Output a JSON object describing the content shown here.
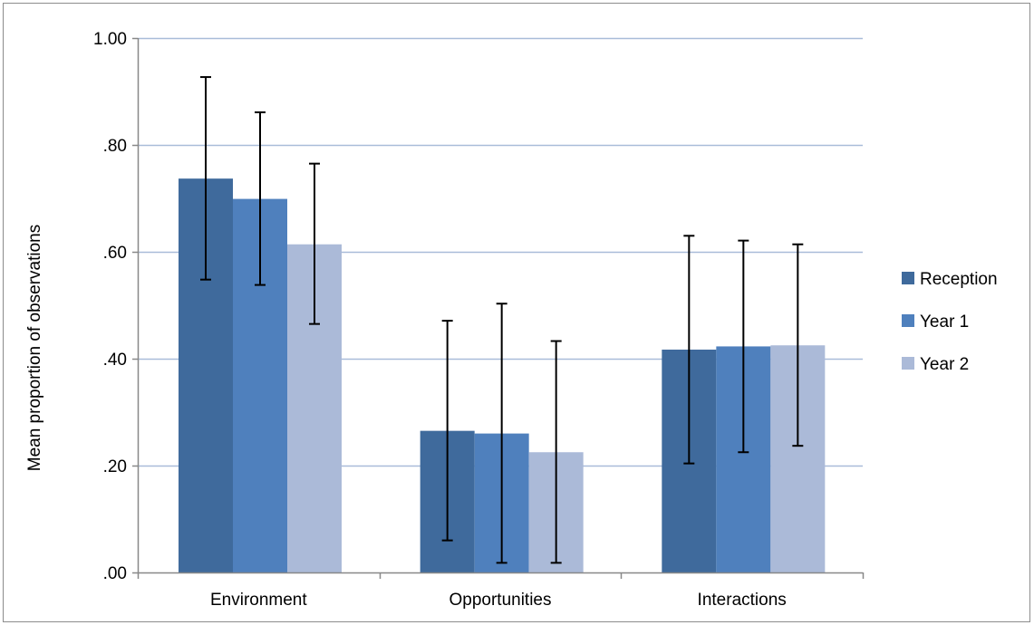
{
  "chart_data": {
    "type": "bar",
    "title": "",
    "xlabel": "",
    "ylabel": "Mean proportion of observations",
    "ylim": [
      0,
      1
    ],
    "y_ticks": [
      0,
      0.2,
      0.4,
      0.6,
      0.8,
      1.0
    ],
    "y_tick_labels": [
      ".00",
      ".20",
      ".40",
      ".60",
      ".80",
      "1.00"
    ],
    "categories": [
      "Environment",
      "Opportunities",
      "Interactions"
    ],
    "grid": true,
    "legend_position": "right",
    "series": [
      {
        "name": "Reception",
        "color": "#3f6a9c",
        "values": [
          0.737,
          0.265,
          0.417
        ],
        "error_low": [
          0.548,
          0.06,
          0.204
        ],
        "error_high": [
          0.927,
          0.471,
          0.63
        ]
      },
      {
        "name": "Year 1",
        "color": "#4f80bd",
        "values": [
          0.699,
          0.26,
          0.423
        ],
        "error_low": [
          0.538,
          0.018,
          0.225
        ],
        "error_high": [
          0.861,
          0.503,
          0.621
        ]
      },
      {
        "name": "Year 2",
        "color": "#abbad8",
        "values": [
          0.614,
          0.225,
          0.425
        ],
        "error_low": [
          0.465,
          0.018,
          0.237
        ],
        "error_high": [
          0.765,
          0.433,
          0.614
        ]
      }
    ],
    "gridline_color": "#a9bcd9",
    "axis_color": "#888888"
  }
}
